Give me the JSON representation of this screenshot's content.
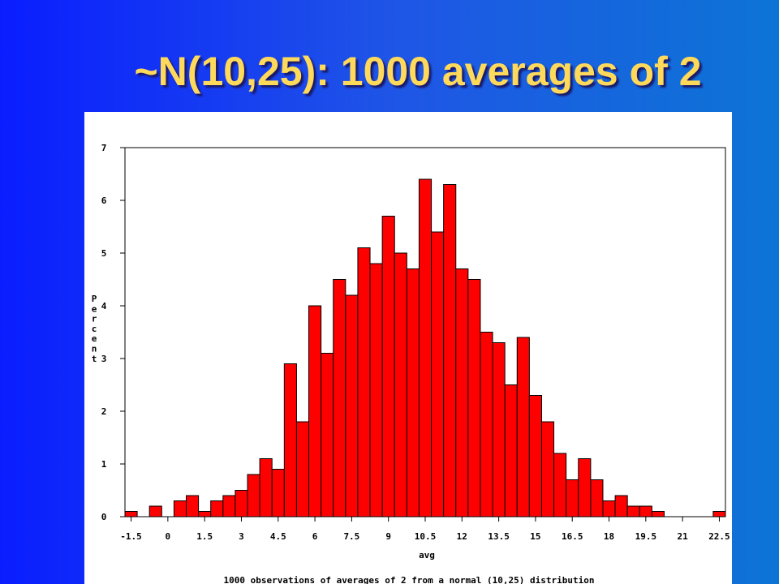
{
  "slide": {
    "title": "~N(10,25): 1000 averages of 2"
  },
  "chart_data": {
    "type": "bar",
    "title": "",
    "xlabel": "avg",
    "ylabel": "Percent",
    "caption": "1000 observations of averages of 2 from a normal (10,25) distribution",
    "bin_width": 0.5,
    "xlim": [
      -1.75,
      22.75
    ],
    "ylim": [
      0,
      7
    ],
    "x_ticks": [
      -1.5,
      0,
      1.5,
      3,
      4.5,
      6,
      7.5,
      9,
      10.5,
      12,
      13.5,
      15,
      16.5,
      18,
      19.5,
      21,
      22.5
    ],
    "x_tick_labels": [
      "-1.5",
      "0",
      "1.5",
      "3",
      "4.5",
      "6",
      "7.5",
      "9",
      "10.5",
      "12",
      "13.5",
      "15",
      "16.5",
      "18",
      "19.5",
      "21",
      "22.5"
    ],
    "y_ticks": [
      0,
      1,
      2,
      3,
      4,
      5,
      6,
      7
    ],
    "y_tick_labels": [
      "0",
      "1",
      "2",
      "3",
      "4",
      "5",
      "6",
      "7"
    ],
    "bar_color": "#ff0000",
    "bins": [
      -1.5,
      -1,
      -0.5,
      0,
      0.5,
      1,
      1.5,
      2,
      2.5,
      3,
      3.5,
      4,
      4.5,
      5,
      5.5,
      6,
      6.5,
      7,
      7.5,
      8,
      8.5,
      9,
      9.5,
      10,
      10.5,
      11,
      11.5,
      12,
      12.5,
      13,
      13.5,
      14,
      14.5,
      15,
      15.5,
      16,
      16.5,
      17,
      17.5,
      18,
      18.5,
      19,
      19.5,
      20,
      20.5,
      21,
      21.5,
      22,
      22.5
    ],
    "values": [
      0.1,
      0,
      0.2,
      0,
      0.3,
      0.4,
      0.1,
      0.3,
      0.4,
      0.5,
      0.8,
      1.1,
      0.9,
      2.9,
      1.8,
      4.0,
      3.1,
      4.5,
      4.2,
      5.1,
      4.8,
      5.7,
      5.0,
      4.7,
      6.4,
      5.4,
      6.3,
      4.7,
      4.5,
      3.5,
      3.3,
      2.5,
      3.4,
      2.3,
      1.8,
      1.2,
      0.7,
      1.1,
      0.7,
      0.3,
      0.4,
      0.2,
      0.2,
      0.1,
      0,
      0,
      0,
      0,
      0.1
    ],
    "grid": false,
    "legend": "none"
  }
}
